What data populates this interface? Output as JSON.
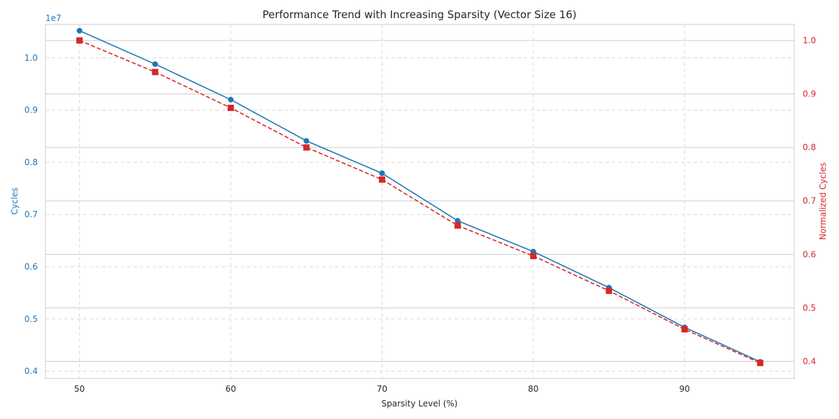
{
  "chart_data": {
    "type": "line",
    "title": "Performance Trend with Increasing Sparsity (Vector Size 16)",
    "xlabel": "Sparsity Level (%)",
    "ylabel_left": "Cycles",
    "ylabel_right": "Normalized Cycles",
    "left_offset_label": "1e7",
    "x": [
      50,
      55,
      60,
      65,
      70,
      75,
      80,
      85,
      90,
      95
    ],
    "x_ticks": [
      50,
      60,
      70,
      80,
      90
    ],
    "xlim": [
      47.75,
      97.25
    ],
    "ylim_left": [
      0.386,
      1.064
    ],
    "y_ticks_left": [
      0.4,
      0.5,
      0.6,
      0.7,
      0.8,
      0.9,
      1.0
    ],
    "y_tick_labels_left": [
      "0.4",
      "0.5",
      "0.6",
      "0.7",
      "0.8",
      "0.9",
      "1.0"
    ],
    "ylim_right": [
      0.368,
      1.03
    ],
    "y_ticks_right": [
      0.4,
      0.5,
      0.6,
      0.7,
      0.8,
      0.9,
      1.0
    ],
    "y_tick_labels_right": [
      "0.4",
      "0.5",
      "0.6",
      "0.7",
      "0.8",
      "0.9",
      "1.0"
    ],
    "series": [
      {
        "axis": "left",
        "color": "#1f77b4",
        "marker": "circle",
        "values": [
          1.052,
          0.988,
          0.92,
          0.841,
          0.779,
          0.688,
          0.629,
          0.56,
          0.484,
          0.418
        ]
      },
      {
        "axis": "right",
        "color": "#d62728",
        "marker": "square",
        "linestyle": "dashed",
        "values": [
          1.0,
          0.941,
          0.874,
          0.8,
          0.74,
          0.654,
          0.597,
          0.532,
          0.46,
          0.397
        ]
      }
    ],
    "grid": true,
    "colors": {
      "left_axis": "#1f77b4",
      "right_axis": "#d62728",
      "text": "#262626"
    }
  }
}
